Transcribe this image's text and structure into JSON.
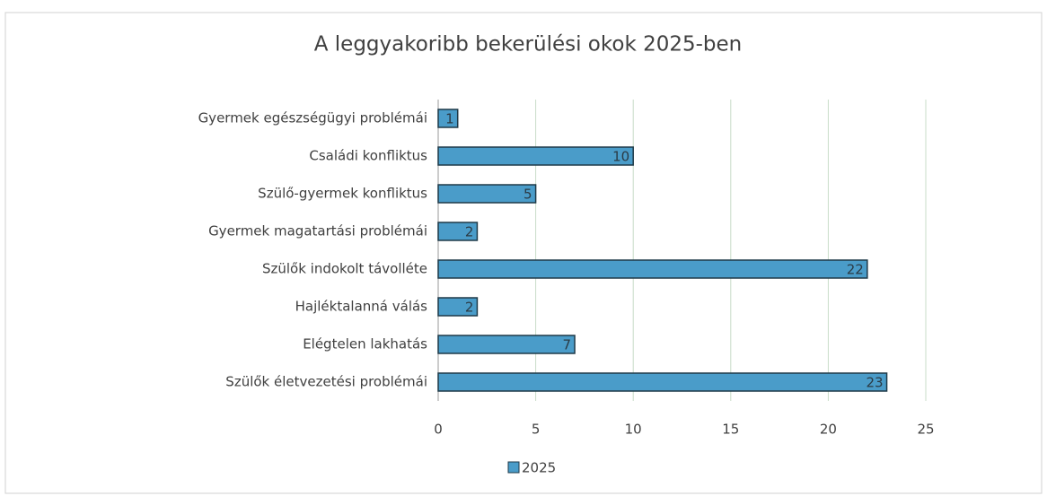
{
  "chart_data": {
    "type": "bar",
    "orientation": "horizontal",
    "title": "A leggyakoribb bekerülési okok 2025-ben",
    "categories": [
      "Gyermek egészségügyi problémái",
      "Családi konfliktus",
      "Szülő-gyermek konfliktus",
      "Gyermek magatartási problémái",
      "Szülők indokolt távolléte",
      "Hajléktalanná válás",
      "Elégtelen lakhatás",
      "Szülők életvezetési problémái"
    ],
    "series": [
      {
        "name": "2025",
        "color": "#4a9cc9",
        "values": [
          1,
          10,
          5,
          2,
          22,
          2,
          7,
          23
        ]
      }
    ],
    "xlim": [
      0,
      25
    ],
    "xticks": [
      0,
      5,
      10,
      15,
      20,
      25
    ],
    "grid": true,
    "legend": "bottom"
  }
}
